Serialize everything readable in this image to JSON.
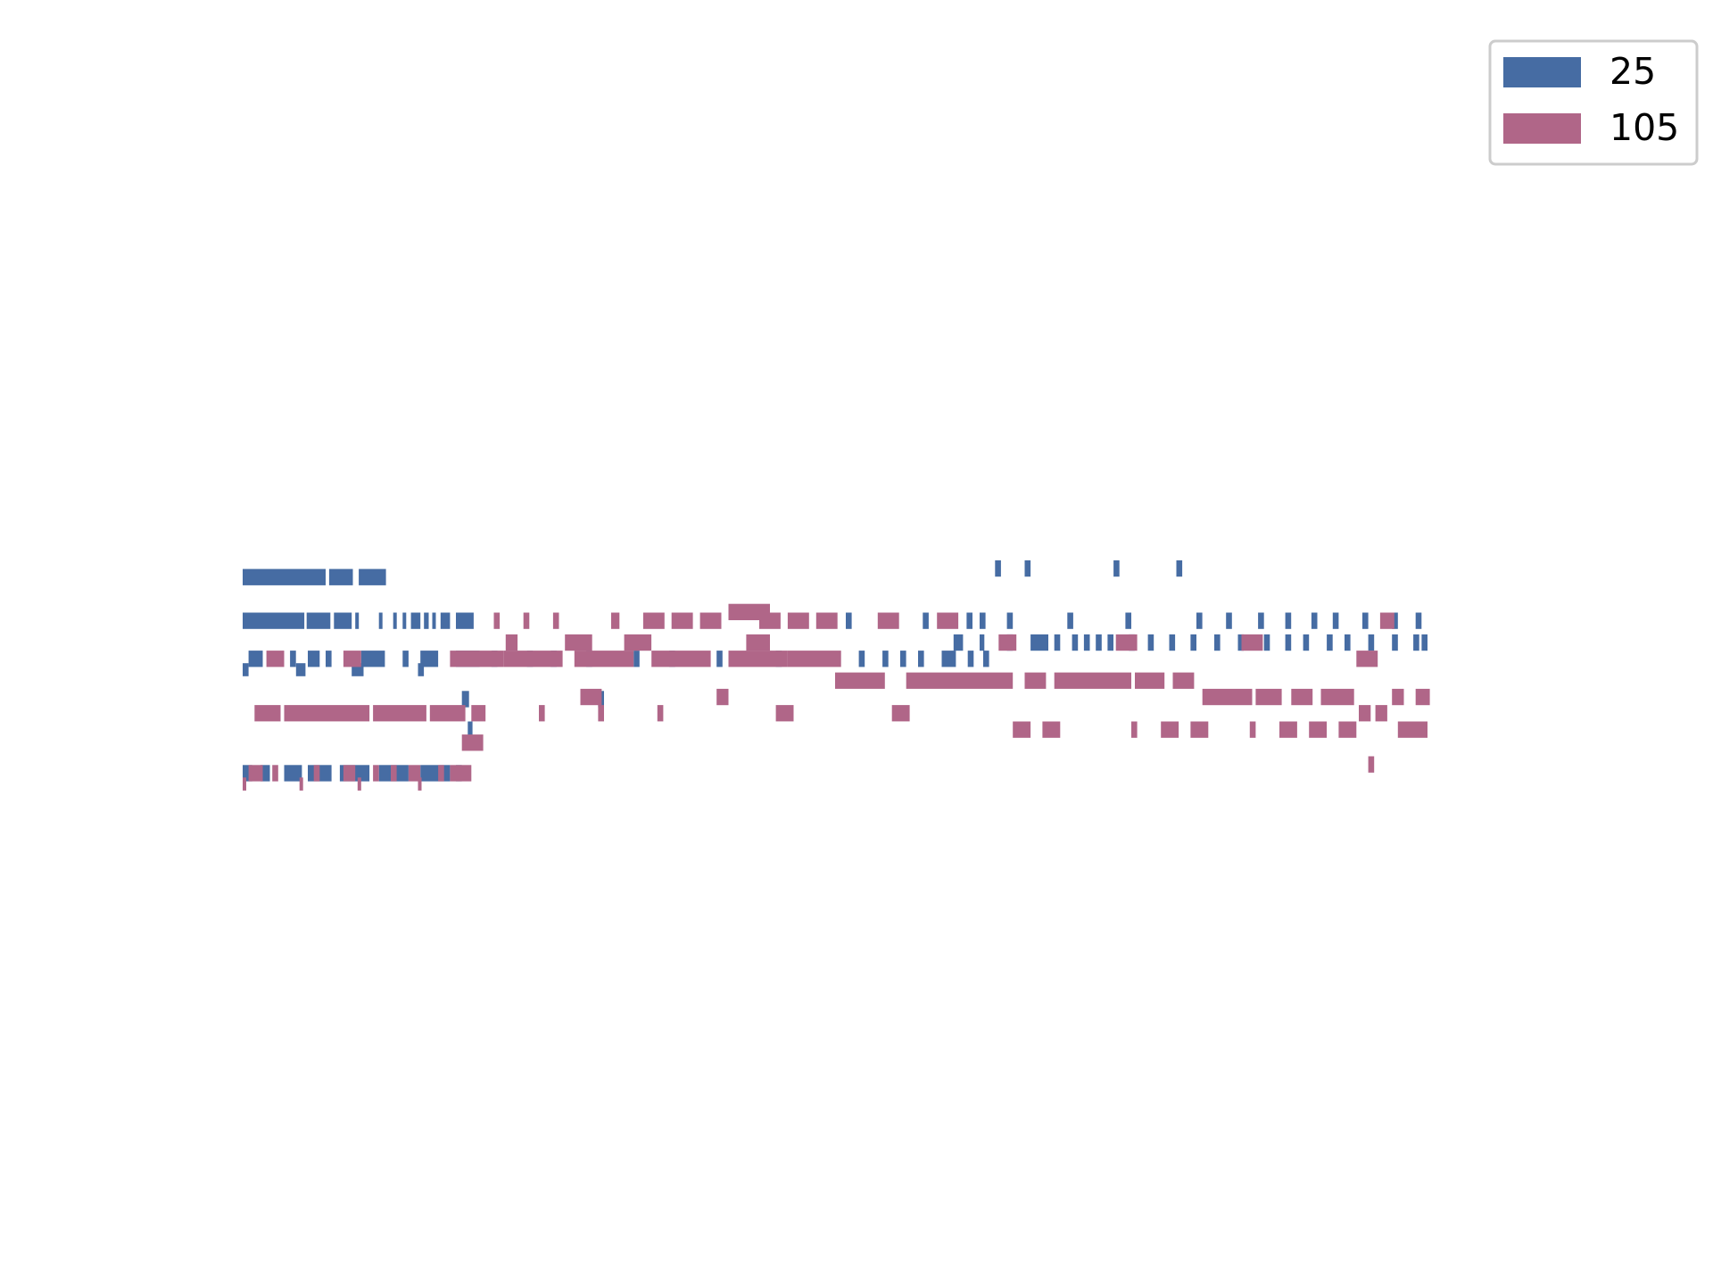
{
  "chart_data": {
    "type": "bar",
    "orientation": "horizontal-broken-bars",
    "title": "",
    "xlabel": "",
    "ylabel": "",
    "axes_visible": false,
    "grid": false,
    "legend_position": "top-right",
    "xlim": [
      0,
      1000
    ],
    "ylim": [
      0,
      100
    ],
    "colors": {
      "25": "#466ca3",
      "105": "#b06688"
    },
    "series": [
      {
        "name": "25",
        "segments": [
          [
            0,
            70,
            56.0,
            1.5
          ],
          [
            73,
            20,
            56.0,
            1.5
          ],
          [
            98,
            23,
            56.0,
            1.5
          ],
          [
            635,
            5,
            56.8,
            1.5
          ],
          [
            660,
            5,
            56.8,
            1.5
          ],
          [
            735,
            5,
            56.8,
            1.5
          ],
          [
            788,
            5,
            56.8,
            1.5
          ],
          [
            0,
            52,
            52.0,
            1.5
          ],
          [
            54,
            20,
            52.0,
            1.5
          ],
          [
            77,
            15,
            52.0,
            1.5
          ],
          [
            95,
            3,
            52.0,
            1.5
          ],
          [
            115,
            3,
            52.0,
            1.5
          ],
          [
            127,
            3,
            52.0,
            1.5
          ],
          [
            135,
            3,
            52.0,
            1.5
          ],
          [
            142,
            8,
            52.0,
            1.5
          ],
          [
            153,
            4,
            52.0,
            1.5
          ],
          [
            160,
            3,
            52.0,
            1.5
          ],
          [
            167,
            8,
            52.0,
            1.5
          ],
          [
            180,
            15,
            52.0,
            1.5
          ],
          [
            509,
            5,
            52.0,
            1.5
          ],
          [
            574,
            5,
            52.0,
            1.5
          ],
          [
            611,
            5,
            52.0,
            1.5
          ],
          [
            622,
            5,
            52.0,
            1.5
          ],
          [
            645,
            5,
            52.0,
            1.5
          ],
          [
            696,
            5,
            52.0,
            1.5
          ],
          [
            745,
            5,
            52.0,
            1.5
          ],
          [
            805,
            5,
            52.0,
            1.5
          ],
          [
            830,
            5,
            52.0,
            1.5
          ],
          [
            857,
            5,
            52.0,
            1.5
          ],
          [
            880,
            5,
            52.0,
            1.5
          ],
          [
            902,
            5,
            52.0,
            1.5
          ],
          [
            920,
            5,
            52.0,
            1.5
          ],
          [
            945,
            5,
            52.0,
            1.5
          ],
          [
            970,
            5,
            52.0,
            1.5
          ],
          [
            990,
            5,
            52.0,
            1.5
          ],
          [
            600,
            8,
            50.0,
            1.5
          ],
          [
            622,
            4,
            50.0,
            1.5
          ],
          [
            645,
            5,
            50.0,
            1.5
          ],
          [
            665,
            15,
            50.0,
            1.5
          ],
          [
            685,
            5,
            50.0,
            1.5
          ],
          [
            700,
            5,
            50.0,
            1.5
          ],
          [
            710,
            5,
            50.0,
            1.5
          ],
          [
            720,
            5,
            50.0,
            1.5
          ],
          [
            730,
            5,
            50.0,
            1.5
          ],
          [
            748,
            5,
            50.0,
            1.5
          ],
          [
            764,
            5,
            50.0,
            1.5
          ],
          [
            782,
            5,
            50.0,
            1.5
          ],
          [
            800,
            5,
            50.0,
            1.5
          ],
          [
            820,
            5,
            50.0,
            1.5
          ],
          [
            840,
            5,
            50.0,
            1.5
          ],
          [
            862,
            5,
            50.0,
            1.5
          ],
          [
            880,
            5,
            50.0,
            1.5
          ],
          [
            895,
            5,
            50.0,
            1.5
          ],
          [
            915,
            5,
            50.0,
            1.5
          ],
          [
            930,
            5,
            50.0,
            1.5
          ],
          [
            950,
            5,
            50.0,
            1.5
          ],
          [
            970,
            5,
            50.0,
            1.5
          ],
          [
            988,
            5,
            50.0,
            1.5
          ],
          [
            995,
            5,
            50.0,
            1.5
          ],
          [
            5,
            12,
            48.5,
            1.5
          ],
          [
            40,
            5,
            48.5,
            1.5
          ],
          [
            55,
            10,
            48.5,
            1.5
          ],
          [
            70,
            5,
            48.5,
            1.5
          ],
          [
            100,
            20,
            48.5,
            1.5
          ],
          [
            135,
            5,
            48.5,
            1.5
          ],
          [
            150,
            15,
            48.5,
            1.5
          ],
          [
            180,
            20,
            48.5,
            1.5
          ],
          [
            210,
            5,
            48.5,
            1.5
          ],
          [
            240,
            5,
            48.5,
            1.5
          ],
          [
            260,
            5,
            48.5,
            1.5
          ],
          [
            290,
            5,
            48.5,
            1.5
          ],
          [
            330,
            5,
            48.5,
            1.5
          ],
          [
            360,
            5,
            48.5,
            1.5
          ],
          [
            400,
            5,
            48.5,
            1.5
          ],
          [
            450,
            5,
            48.5,
            1.5
          ],
          [
            520,
            5,
            48.5,
            1.5
          ],
          [
            540,
            5,
            48.5,
            1.5
          ],
          [
            555,
            5,
            48.5,
            1.5
          ],
          [
            570,
            5,
            48.5,
            1.5
          ],
          [
            590,
            12,
            48.5,
            1.5
          ],
          [
            612,
            5,
            48.5,
            1.5
          ],
          [
            625,
            5,
            48.5,
            1.5
          ],
          [
            0,
            5,
            47.5,
            1.2
          ],
          [
            45,
            8,
            47.5,
            1.2
          ],
          [
            92,
            10,
            47.5,
            1.2
          ],
          [
            148,
            5,
            47.5,
            1.2
          ],
          [
            185,
            6,
            44.8,
            1.5
          ],
          [
            300,
            5,
            44.8,
            1.5
          ],
          [
            190,
            4,
            42.0,
            1.5
          ],
          [
            0,
            8,
            38.0,
            1.5
          ],
          [
            15,
            8,
            38.0,
            1.5
          ],
          [
            35,
            15,
            38.0,
            1.5
          ],
          [
            55,
            20,
            38.0,
            1.5
          ],
          [
            82,
            25,
            38.0,
            1.5
          ],
          [
            115,
            25,
            38.0,
            1.5
          ],
          [
            150,
            25,
            38.0,
            1.5
          ],
          [
            180,
            5,
            38.0,
            1.5
          ]
        ]
      },
      {
        "name": "105",
        "segments": [
          [
            212,
            5,
            52.0,
            1.5
          ],
          [
            237,
            5,
            52.0,
            1.5
          ],
          [
            262,
            5,
            52.0,
            1.5
          ],
          [
            311,
            7,
            52.0,
            1.5
          ],
          [
            338,
            18,
            52.0,
            1.5
          ],
          [
            362,
            18,
            52.0,
            1.5
          ],
          [
            386,
            18,
            52.0,
            1.5
          ],
          [
            436,
            18,
            52.0,
            1.5
          ],
          [
            460,
            18,
            52.0,
            1.5
          ],
          [
            484,
            18,
            52.0,
            1.5
          ],
          [
            536,
            18,
            52.0,
            1.5
          ],
          [
            586,
            18,
            52.0,
            1.5
          ],
          [
            960,
            12,
            52.0,
            1.5
          ],
          [
            410,
            35,
            52.8,
            1.5
          ],
          [
            222,
            10,
            50.0,
            1.5
          ],
          [
            272,
            23,
            50.0,
            1.5
          ],
          [
            322,
            23,
            50.0,
            1.5
          ],
          [
            425,
            20,
            50.0,
            1.5
          ],
          [
            638,
            15,
            50.0,
            1.5
          ],
          [
            737,
            18,
            50.0,
            1.5
          ],
          [
            843,
            18,
            50.0,
            1.5
          ],
          [
            20,
            15,
            48.5,
            1.5
          ],
          [
            85,
            15,
            48.5,
            1.5
          ],
          [
            175,
            45,
            48.5,
            1.5
          ],
          [
            220,
            50,
            48.5,
            1.5
          ],
          [
            280,
            50,
            48.5,
            1.5
          ],
          [
            345,
            50,
            48.5,
            1.5
          ],
          [
            410,
            50,
            48.5,
            1.5
          ],
          [
            460,
            45,
            48.5,
            1.5
          ],
          [
            940,
            18,
            48.5,
            1.5
          ],
          [
            500,
            42,
            46.5,
            1.5
          ],
          [
            560,
            90,
            46.5,
            1.5
          ],
          [
            660,
            18,
            46.5,
            1.5
          ],
          [
            685,
            65,
            46.5,
            1.5
          ],
          [
            753,
            25,
            46.5,
            1.5
          ],
          [
            785,
            18,
            46.5,
            1.5
          ],
          [
            285,
            18,
            45.0,
            1.5
          ],
          [
            400,
            10,
            45.0,
            1.5
          ],
          [
            810,
            42,
            45.0,
            1.5
          ],
          [
            855,
            22,
            45.0,
            1.5
          ],
          [
            885,
            18,
            45.0,
            1.5
          ],
          [
            910,
            28,
            45.0,
            1.5
          ],
          [
            970,
            10,
            45.0,
            1.5
          ],
          [
            990,
            12,
            45.0,
            1.5
          ],
          [
            10,
            22,
            43.5,
            1.5
          ],
          [
            35,
            72,
            43.5,
            1.5
          ],
          [
            110,
            45,
            43.5,
            1.5
          ],
          [
            158,
            30,
            43.5,
            1.5
          ],
          [
            193,
            12,
            43.5,
            1.5
          ],
          [
            250,
            5,
            43.5,
            1.5
          ],
          [
            300,
            5,
            43.5,
            1.5
          ],
          [
            350,
            5,
            43.5,
            1.5
          ],
          [
            450,
            15,
            43.5,
            1.5
          ],
          [
            548,
            15,
            43.5,
            1.5
          ],
          [
            942,
            10,
            43.5,
            1.5
          ],
          [
            956,
            10,
            43.5,
            1.5
          ],
          [
            650,
            15,
            42.0,
            1.5
          ],
          [
            675,
            15,
            42.0,
            1.5
          ],
          [
            750,
            5,
            42.0,
            1.5
          ],
          [
            775,
            15,
            42.0,
            1.5
          ],
          [
            800,
            15,
            42.0,
            1.5
          ],
          [
            850,
            5,
            42.0,
            1.5
          ],
          [
            875,
            15,
            42.0,
            1.5
          ],
          [
            900,
            15,
            42.0,
            1.5
          ],
          [
            925,
            15,
            42.0,
            1.5
          ],
          [
            975,
            25,
            42.0,
            1.5
          ],
          [
            185,
            18,
            40.8,
            1.5
          ],
          [
            950,
            5,
            38.8,
            1.5
          ],
          [
            5,
            12,
            38.0,
            1.5
          ],
          [
            25,
            5,
            38.0,
            1.5
          ],
          [
            60,
            5,
            38.0,
            1.5
          ],
          [
            85,
            10,
            38.0,
            1.5
          ],
          [
            110,
            5,
            38.0,
            1.5
          ],
          [
            125,
            5,
            38.0,
            1.5
          ],
          [
            140,
            10,
            38.0,
            1.5
          ],
          [
            165,
            5,
            38.0,
            1.5
          ],
          [
            175,
            18,
            38.0,
            1.5
          ],
          [
            0,
            3,
            37.0,
            1.2
          ],
          [
            48,
            3,
            37.0,
            1.2
          ],
          [
            97,
            3,
            37.0,
            1.2
          ],
          [
            148,
            3,
            37.0,
            1.2
          ]
        ]
      }
    ]
  }
}
